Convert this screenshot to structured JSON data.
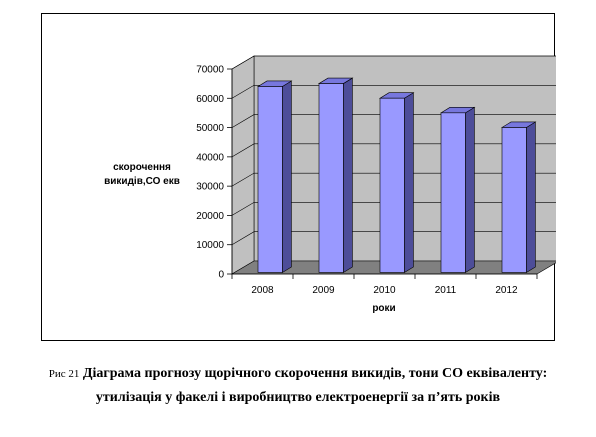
{
  "chart_data": {
    "type": "bar",
    "categories": [
      "2008",
      "2009",
      "2010",
      "2011",
      "2012"
    ],
    "values": [
      63500,
      64500,
      59500,
      54500,
      49500
    ],
    "xlabel": "роки",
    "ylabel_lines": [
      "скорочення",
      "викидів,СО екв"
    ],
    "ylim": [
      0,
      70000
    ],
    "yticks": [
      "0",
      "10000",
      "20000",
      "30000",
      "40000",
      "50000",
      "60000",
      "70000"
    ],
    "grid": true,
    "legend": "none",
    "style": "3d-column",
    "colors": {
      "bar_front": "#9999ff",
      "bar_side": "#4d4d99",
      "bar_top": "#7777dd",
      "wall": "#c0c0c0",
      "floor": "#808080"
    }
  },
  "caption": {
    "prefix": "Рис 21",
    "text": "Діаграма прогнозу щорічного скорочення викидів, тони СО еквіваленту: утилізація у факелі і виробництво електроенергії за п’ять років"
  }
}
